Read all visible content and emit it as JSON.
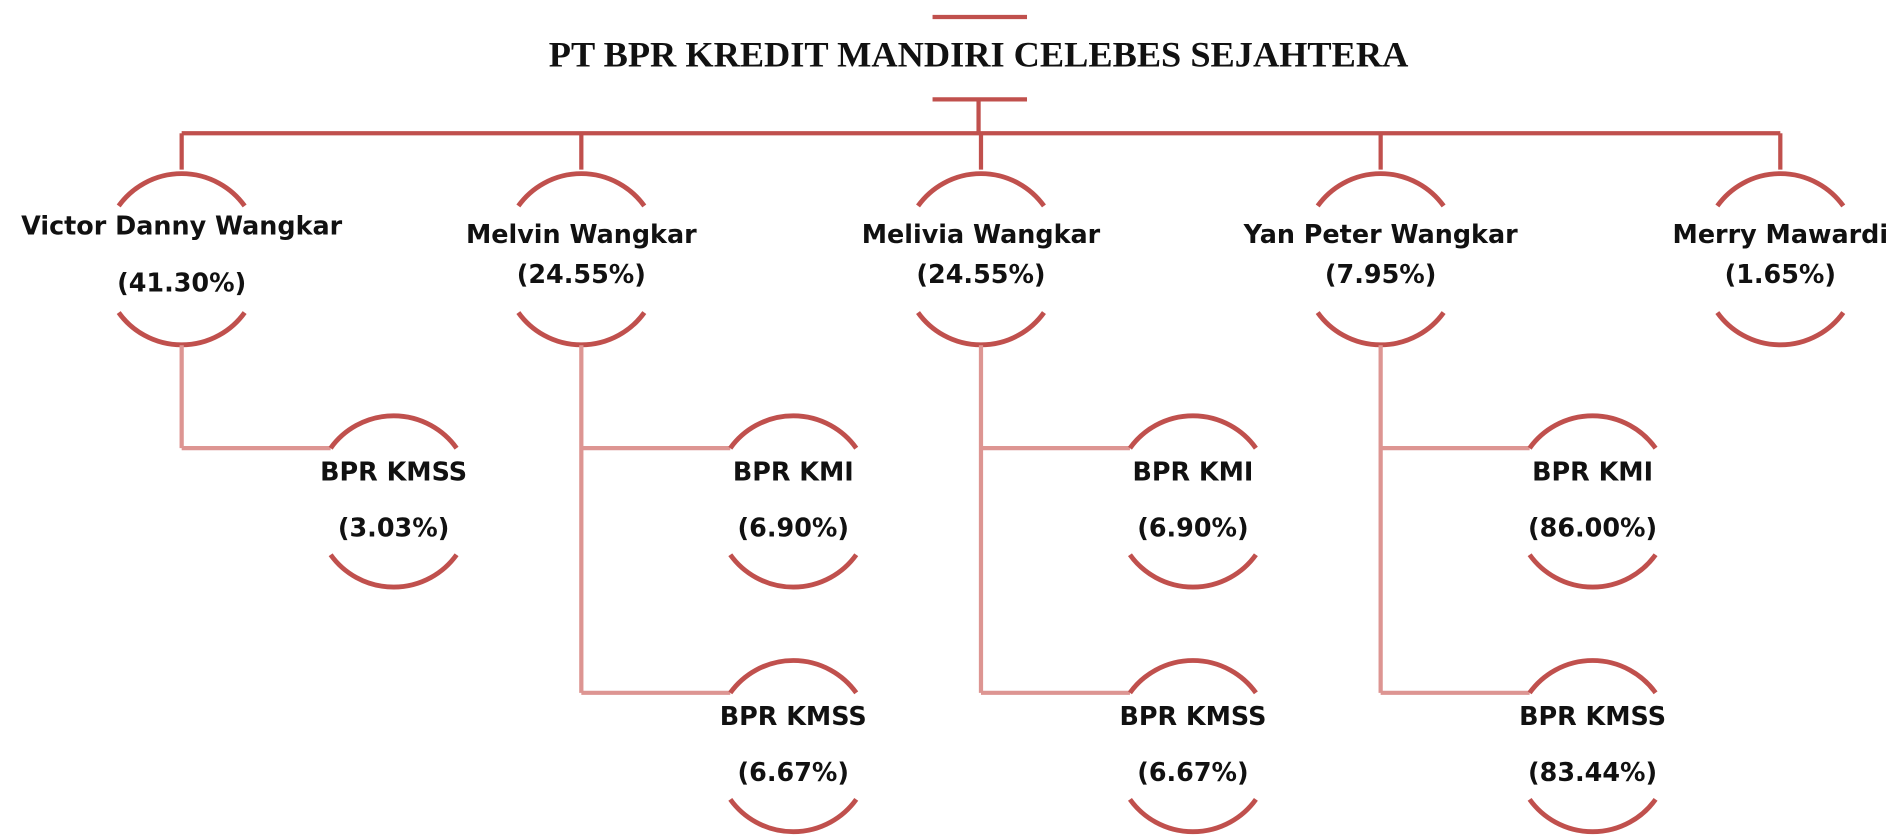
{
  "title": "PT BPR KREDIT MANDIRI CELEBES SEJAHTERA",
  "shareholders": [
    {
      "name": "Victor Danny Wangkar",
      "share": "(41.30%)",
      "subsidiaries": [
        {
          "name": "BPR KMSS",
          "share": "(3.03%)"
        }
      ]
    },
    {
      "name": "Melvin Wangkar",
      "share": "(24.55%)",
      "subsidiaries": [
        {
          "name": "BPR KMI",
          "share": "(6.90%)"
        },
        {
          "name": "BPR KMSS",
          "share": "(6.67%)"
        }
      ]
    },
    {
      "name": "Melivia Wangkar",
      "share": "(24.55%)",
      "subsidiaries": [
        {
          "name": "BPR KMI",
          "share": "(6.90%)"
        },
        {
          "name": "BPR KMSS",
          "share": "(6.67%)"
        }
      ]
    },
    {
      "name": "Yan Peter Wangkar",
      "share": "(7.95%)",
      "subsidiaries": [
        {
          "name": "BPR KMI",
          "share": "(86.00%)"
        },
        {
          "name": "BPR KMSS",
          "share": "(83.44%)"
        }
      ]
    },
    {
      "name": "Merry Mawardi",
      "share": "(1.65%)",
      "subsidiaries": []
    }
  ]
}
